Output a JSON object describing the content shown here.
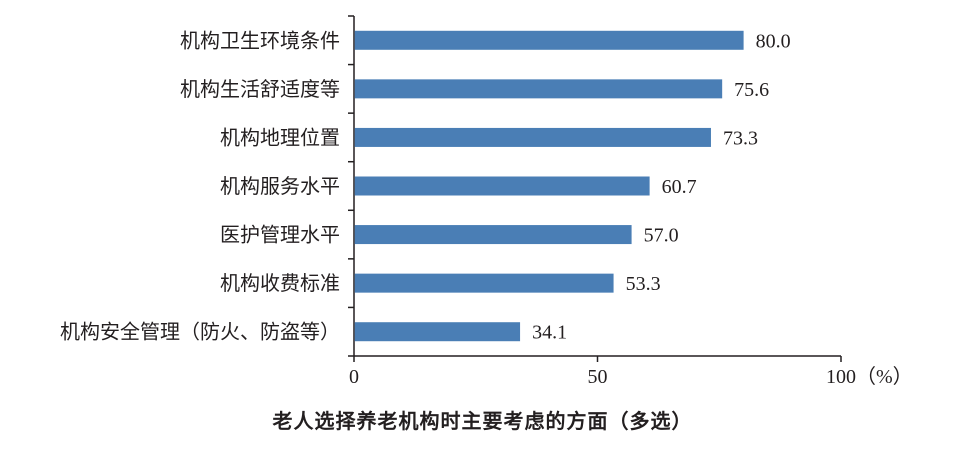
{
  "chart_data": {
    "type": "bar",
    "orientation": "horizontal",
    "title": "老人选择养老机构时主要考虑的方面（多选）",
    "categories": [
      "机构卫生环境条件",
      "机构生活舒适度等",
      "机构地理位置",
      "机构服务水平",
      "医护管理水平",
      "机构收费标准",
      "机构安全管理（防火、防盗等）"
    ],
    "values": [
      80.0,
      75.6,
      73.3,
      60.7,
      57.0,
      53.3,
      34.1
    ],
    "value_labels": [
      "80.0",
      "75.6",
      "73.3",
      "60.7",
      "57.0",
      "53.3",
      "34.1"
    ],
    "xlim": [
      0,
      100
    ],
    "x_ticks": [
      0,
      50,
      100
    ],
    "x_tick_labels": [
      "0",
      "50",
      "100（%）"
    ],
    "xlabel": "",
    "ylabel": "",
    "grid": false,
    "colors": {
      "bar": "#4a7eb5",
      "axis": "#231f20",
      "text": "#231f20"
    }
  }
}
